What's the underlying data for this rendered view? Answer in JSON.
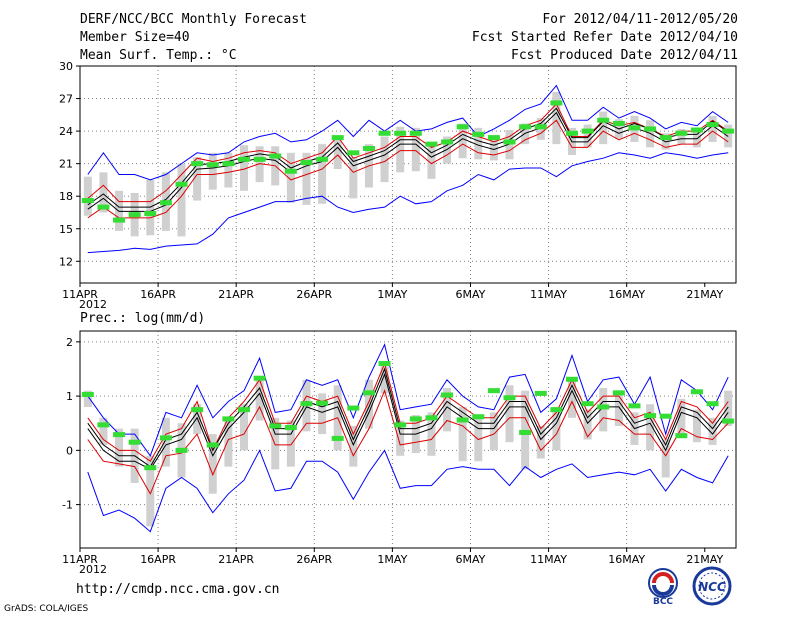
{
  "header": {
    "title": "DERF/NCC/BCC Monthly Forecast",
    "members": "Member Size=40",
    "variable": "Mean Surf. Temp.: °C",
    "period": "For 2012/04/11-2012/05/20",
    "started": "Fcst Started Refer Date 2012/04/10",
    "produced": "Fcst Produced Date 2012/04/11"
  },
  "footer": {
    "url": "http://cmdp.ncc.cma.gov.cn",
    "credit": "GrADS: COLA/IGES",
    "logo1_text": "BCC",
    "logo2_text": "NCC"
  },
  "chart_data": [
    {
      "type": "line",
      "name": "temperature",
      "title": "Mean Surf. Temp.: °C",
      "ylabel": "Mean Surf. Temp.: °C",
      "ylim": [
        10,
        30
      ],
      "yticks": [
        12,
        15,
        18,
        21,
        24,
        27,
        30
      ],
      "xticks": [
        "11APR",
        "16APR",
        "21APR",
        "26APR",
        "1MAY",
        "6MAY",
        "11MAY",
        "16MAY",
        "21MAY"
      ],
      "xyear": "2012",
      "grid": true,
      "series": [
        {
          "name": "max",
          "color": "#0000ff",
          "values": [
            20.0,
            22.0,
            20.0,
            20.0,
            19.5,
            20.0,
            21.0,
            22.0,
            21.8,
            22.0,
            23.0,
            23.5,
            23.8,
            23.0,
            23.2,
            24.0,
            25.0,
            23.5,
            25.0,
            24.0,
            25.0,
            24.0,
            24.2,
            24.8,
            25.2,
            23.5,
            24.2,
            25.0,
            26.0,
            26.5,
            28.2,
            25.0,
            25.0,
            26.2,
            25.2,
            25.8,
            25.2,
            24.2,
            24.8,
            24.5,
            25.8,
            24.8
          ]
        },
        {
          "name": "upper",
          "color": "#dd0000",
          "values": [
            17.8,
            19.0,
            17.5,
            17.5,
            17.5,
            18.5,
            20.0,
            21.5,
            21.2,
            21.5,
            22.0,
            22.2,
            22.0,
            21.0,
            21.5,
            22.0,
            23.5,
            21.5,
            22.0,
            22.5,
            23.5,
            23.5,
            22.5,
            23.0,
            24.0,
            23.5,
            23.0,
            23.5,
            24.5,
            25.0,
            26.5,
            23.5,
            23.5,
            25.0,
            24.5,
            24.8,
            24.2,
            23.5,
            24.0,
            24.0,
            25.0,
            24.0
          ]
        },
        {
          "name": "median",
          "color": "#000000",
          "values": [
            16.8,
            17.8,
            16.6,
            16.6,
            16.6,
            17.2,
            18.8,
            20.5,
            20.6,
            20.8,
            21.2,
            21.5,
            21.3,
            20.2,
            20.8,
            21.2,
            22.5,
            20.8,
            21.3,
            21.8,
            22.8,
            22.8,
            21.6,
            22.3,
            23.3,
            22.7,
            22.3,
            22.8,
            23.8,
            24.3,
            25.7,
            23.0,
            23.0,
            24.5,
            23.8,
            24.3,
            23.8,
            23.0,
            23.3,
            23.3,
            24.5,
            23.5
          ]
        },
        {
          "name": "mean",
          "color": "#000000",
          "values": [
            17.2,
            18.2,
            17.0,
            17.0,
            17.0,
            17.7,
            19.2,
            20.9,
            21.0,
            21.2,
            21.6,
            21.9,
            21.7,
            20.6,
            21.2,
            21.6,
            22.9,
            21.2,
            21.7,
            22.2,
            23.2,
            23.2,
            22.0,
            22.7,
            23.7,
            23.1,
            22.7,
            23.2,
            24.2,
            24.7,
            26.1,
            23.4,
            23.4,
            24.9,
            24.2,
            24.7,
            24.2,
            23.4,
            23.7,
            23.7,
            24.9,
            23.9
          ]
        },
        {
          "name": "lower",
          "color": "#dd0000",
          "values": [
            16.0,
            17.0,
            16.0,
            16.0,
            16.0,
            16.5,
            18.0,
            20.0,
            20.0,
            20.2,
            20.5,
            21.0,
            20.8,
            19.5,
            20.0,
            20.5,
            21.8,
            20.2,
            20.8,
            21.2,
            22.2,
            22.2,
            21.0,
            21.8,
            22.8,
            22.0,
            21.8,
            22.2,
            23.2,
            23.8,
            25.0,
            22.5,
            22.5,
            24.0,
            23.2,
            23.8,
            23.2,
            22.5,
            22.8,
            22.8,
            24.0,
            23.0
          ]
        },
        {
          "name": "min",
          "color": "#0000ff",
          "values": [
            12.8,
            12.9,
            13.0,
            13.2,
            13.1,
            13.4,
            13.5,
            13.6,
            14.5,
            16.0,
            16.5,
            17.0,
            17.5,
            17.5,
            17.8,
            18.0,
            17.0,
            16.5,
            16.8,
            17.0,
            18.0,
            17.3,
            17.5,
            18.5,
            19.0,
            20.0,
            19.5,
            20.5,
            20.6,
            20.6,
            19.8,
            20.8,
            21.2,
            21.5,
            22.0,
            21.8,
            21.5,
            22.0,
            21.8,
            21.5,
            21.8,
            22.0
          ]
        },
        {
          "name": "observed",
          "color": "#33dd33",
          "values": [
            17.6,
            17.0,
            15.8,
            16.3,
            16.4,
            17.4,
            19.1,
            21.0,
            20.9,
            21.0,
            21.4,
            21.4,
            21.7,
            20.3,
            21.1,
            21.4,
            23.4,
            22.0,
            22.4,
            23.8,
            23.8,
            23.8,
            22.8,
            23.0,
            24.4,
            23.7,
            23.4,
            23.0,
            24.4,
            24.4,
            26.6,
            23.8,
            24.0,
            25.0,
            24.7,
            24.3,
            24.2,
            23.4,
            23.8,
            24.1,
            24.6,
            24.0
          ]
        },
        {
          "name": "spread_top",
          "color": "#d0d0d0",
          "values": [
            19.8,
            20.2,
            18.5,
            18.3,
            19.5,
            20.2,
            21.0,
            21.6,
            22.0,
            22.0,
            22.7,
            22.6,
            22.6,
            22.0,
            22.0,
            22.8,
            23.3,
            21.6,
            22.8,
            23.5,
            24.4,
            24.3,
            23.0,
            23.5,
            24.7,
            24.3,
            23.5,
            24.1,
            24.7,
            25.2,
            27.6,
            24.3,
            24.6,
            25.8,
            25.1,
            25.4,
            25.0,
            23.8,
            24.2,
            24.2,
            25.4,
            24.6
          ]
        },
        {
          "name": "spread_bottom",
          "color": "#d0d0d0",
          "values": [
            16.2,
            16.5,
            14.8,
            14.3,
            14.4,
            14.8,
            14.3,
            17.6,
            18.6,
            18.8,
            18.5,
            19.3,
            19.0,
            17.4,
            17.2,
            17.3,
            20.5,
            17.8,
            18.8,
            19.3,
            20.2,
            20.3,
            19.6,
            21.0,
            21.5,
            21.4,
            21.3,
            21.4,
            22.8,
            23.2,
            22.8,
            21.8,
            22.5,
            22.8,
            23.3,
            23.0,
            22.5,
            22.3,
            22.8,
            22.5,
            23.0,
            22.5
          ]
        }
      ]
    },
    {
      "type": "line",
      "name": "precipitation",
      "title": "Prec.: log(mm/d)",
      "ylabel": "Prec.: log(mm/d)",
      "ylim": [
        -1.8,
        2.2
      ],
      "yticks": [
        -1,
        0,
        1,
        2
      ],
      "xticks": [
        "11APR",
        "16APR",
        "21APR",
        "26APR",
        "1MAY",
        "6MAY",
        "11MAY",
        "16MAY",
        "21MAY"
      ],
      "xyear": "2012",
      "grid": true,
      "series": [
        {
          "name": "max",
          "color": "#0000ff",
          "values": [
            1.0,
            0.6,
            0.3,
            0.3,
            -0.1,
            0.7,
            0.6,
            1.2,
            0.6,
            0.9,
            1.1,
            1.7,
            0.7,
            0.75,
            1.3,
            1.2,
            1.3,
            0.6,
            1.35,
            1.95,
            0.75,
            0.8,
            0.85,
            1.3,
            1.0,
            0.8,
            0.75,
            1.35,
            1.4,
            0.7,
            0.95,
            1.75,
            0.9,
            1.3,
            1.35,
            0.85,
            1.35,
            0.3,
            1.3,
            1.1,
            0.75,
            1.35
          ]
        },
        {
          "name": "upper",
          "color": "#dd0000",
          "values": [
            0.6,
            0.2,
            0.0,
            0.0,
            -0.2,
            0.3,
            0.4,
            0.9,
            0.0,
            0.6,
            0.9,
            1.3,
            0.5,
            0.5,
            1.0,
            0.9,
            1.0,
            0.3,
            0.9,
            1.6,
            0.5,
            0.5,
            0.6,
            1.0,
            0.8,
            0.6,
            0.6,
            1.0,
            1.0,
            0.4,
            0.7,
            1.3,
            0.7,
            1.0,
            1.0,
            0.6,
            0.7,
            0.2,
            0.9,
            0.8,
            0.5,
            0.9
          ]
        },
        {
          "name": "median",
          "color": "#000000",
          "values": [
            0.4,
            0.0,
            -0.2,
            -0.2,
            -0.35,
            0.1,
            0.2,
            0.6,
            -0.1,
            0.4,
            0.7,
            1.05,
            0.3,
            0.3,
            0.8,
            0.7,
            0.8,
            0.1,
            0.7,
            1.4,
            0.3,
            0.3,
            0.4,
            0.8,
            0.6,
            0.4,
            0.4,
            0.8,
            0.8,
            0.2,
            0.5,
            1.1,
            0.5,
            0.8,
            0.8,
            0.4,
            0.5,
            0.0,
            0.7,
            0.6,
            0.3,
            0.7
          ]
        },
        {
          "name": "mean",
          "color": "#000000",
          "values": [
            0.5,
            0.1,
            -0.1,
            -0.1,
            -0.3,
            0.2,
            0.3,
            0.7,
            0.0,
            0.5,
            0.8,
            1.15,
            0.4,
            0.4,
            0.9,
            0.8,
            0.9,
            0.2,
            0.8,
            1.5,
            0.4,
            0.4,
            0.5,
            0.9,
            0.7,
            0.5,
            0.5,
            0.9,
            0.9,
            0.3,
            0.6,
            1.2,
            0.6,
            0.9,
            0.9,
            0.5,
            0.6,
            0.1,
            0.8,
            0.7,
            0.4,
            0.8
          ]
        },
        {
          "name": "lower",
          "color": "#dd0000",
          "values": [
            0.2,
            -0.2,
            -0.25,
            -0.3,
            -0.8,
            -0.1,
            -0.05,
            0.3,
            -0.45,
            0.2,
            0.3,
            0.8,
            0.1,
            0.1,
            0.5,
            0.5,
            0.6,
            -0.1,
            0.4,
            1.1,
            0.1,
            0.15,
            0.2,
            0.55,
            0.45,
            0.2,
            0.3,
            0.6,
            0.6,
            0.0,
            0.3,
            0.9,
            0.25,
            0.6,
            0.55,
            0.3,
            0.3,
            -0.1,
            0.4,
            0.25,
            0.2,
            0.5
          ]
        },
        {
          "name": "min",
          "color": "#0000ff",
          "values": [
            -0.4,
            -1.2,
            -1.1,
            -1.25,
            -1.5,
            -0.7,
            -0.5,
            -0.7,
            -1.15,
            -0.8,
            -0.55,
            0.0,
            -0.75,
            -0.7,
            -0.2,
            -0.2,
            -0.4,
            -0.9,
            -0.4,
            0.0,
            -0.7,
            -0.65,
            -0.65,
            -0.35,
            -0.3,
            -0.35,
            -0.35,
            -0.65,
            -0.3,
            -0.5,
            -0.35,
            -0.25,
            -0.5,
            -0.45,
            -0.4,
            -0.45,
            -0.35,
            -0.75,
            -0.35,
            -0.5,
            -0.6,
            -0.1
          ]
        },
        {
          "name": "observed",
          "color": "#33dd33",
          "values": [
            1.03,
            0.47,
            0.29,
            0.15,
            -0.32,
            0.23,
            0.0,
            0.75,
            0.1,
            0.58,
            0.75,
            1.33,
            0.45,
            0.42,
            0.86,
            0.87,
            0.22,
            0.78,
            1.06,
            1.6,
            0.47,
            0.58,
            0.6,
            1.02,
            0.56,
            0.62,
            1.1,
            0.97,
            0.33,
            1.05,
            0.75,
            1.31,
            0.86,
            0.8,
            1.06,
            0.82,
            0.64,
            0.63,
            0.27,
            1.08,
            0.86,
            0.54
          ]
        },
        {
          "name": "spread_top",
          "color": "#d0d0d0",
          "values": [
            1.1,
            0.6,
            0.4,
            0.4,
            -0.1,
            0.6,
            0.5,
            0.85,
            0.3,
            0.6,
            0.85,
            1.35,
            0.6,
            0.55,
            1.3,
            1.05,
            1.2,
            0.45,
            1.3,
            1.55,
            0.55,
            0.65,
            0.7,
            1.15,
            0.8,
            0.65,
            0.7,
            1.2,
            1.1,
            0.45,
            0.8,
            1.35,
            0.75,
            1.15,
            1.05,
            0.7,
            0.85,
            0.2,
            0.95,
            0.75,
            0.6,
            1.1
          ]
        },
        {
          "name": "spread_bottom",
          "color": "#d0d0d0",
          "values": [
            0.8,
            0.1,
            -0.3,
            -0.6,
            -1.4,
            -0.3,
            -0.5,
            0.3,
            -0.8,
            -0.3,
            0.0,
            0.55,
            -0.35,
            -0.3,
            0.35,
            0.3,
            0.0,
            -0.3,
            0.4,
            1.05,
            -0.1,
            -0.05,
            -0.1,
            0.35,
            -0.2,
            -0.2,
            0.0,
            0.15,
            -0.35,
            -0.15,
            0.0,
            0.6,
            0.2,
            0.35,
            0.45,
            0.1,
            0.0,
            -0.5,
            0.3,
            0.15,
            0.1,
            0.45
          ]
        }
      ]
    }
  ]
}
